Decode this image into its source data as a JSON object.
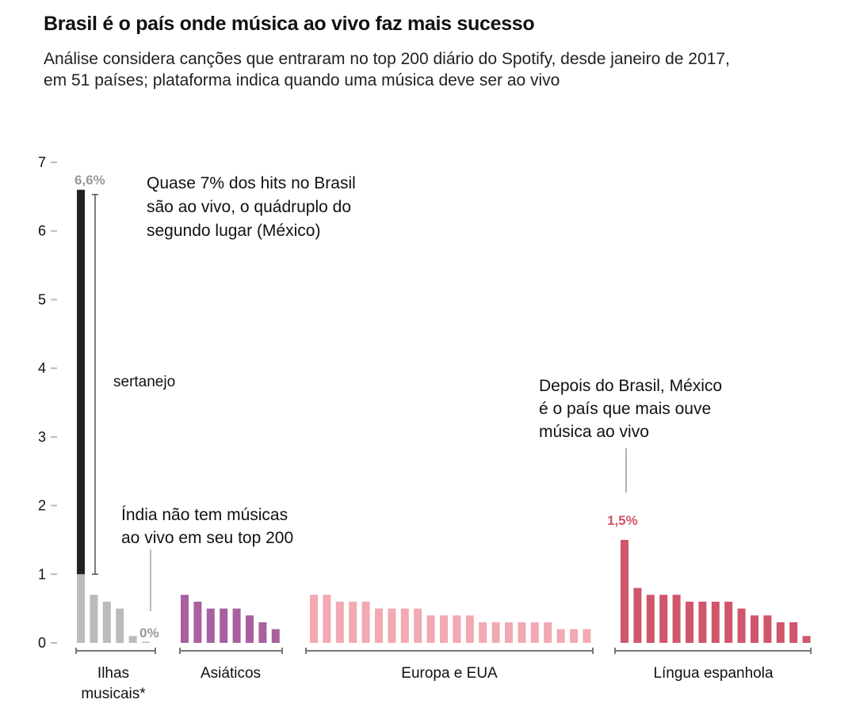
{
  "title": "Brasil é o país onde música ao vivo faz mais sucesso",
  "subtitle": "Análise considera canções que entraram no top 200 diário do Spotify, desde janeiro de 2017, em 51 países; plataforma indica quando uma música deve ser ao vivo",
  "chart_data": {
    "type": "bar",
    "ylim": [
      0,
      7
    ],
    "yticks": [
      "0",
      "1",
      "2",
      "3",
      "4",
      "5",
      "6",
      "7"
    ],
    "groups": [
      {
        "label_lines": [
          "Ilhas",
          "musicais*"
        ],
        "color": "#bbbbbb",
        "values": [
          6.6,
          0.7,
          0.6,
          0.5,
          0.1,
          0
        ]
      },
      {
        "label_lines": [
          "Asiáticos"
        ],
        "color": "#a8609f",
        "values": [
          0.7,
          0.6,
          0.5,
          0.5,
          0.5,
          0.4,
          0.3,
          0.2
        ]
      },
      {
        "label_lines": [
          "Europa e EUA"
        ],
        "color": "#f2a9b4",
        "values": [
          0.7,
          0.7,
          0.6,
          0.6,
          0.6,
          0.5,
          0.5,
          0.5,
          0.5,
          0.4,
          0.4,
          0.4,
          0.4,
          0.3,
          0.3,
          0.3,
          0.3,
          0.3,
          0.3,
          0.2,
          0.2,
          0.2
        ]
      },
      {
        "label_lines": [
          "Língua espanhola"
        ],
        "color": "#d0566b",
        "values": [
          1.5,
          0.8,
          0.7,
          0.7,
          0.7,
          0.6,
          0.6,
          0.6,
          0.6,
          0.5,
          0.4,
          0.4,
          0.3,
          0.3,
          0.1
        ]
      }
    ],
    "highlight": {
      "sertanejo_share": 5.6,
      "sertanejo_color": "#222222",
      "label": "sertanejo"
    },
    "value_labels": {
      "brasil": "6,6%",
      "india": "0%",
      "mexico": "1,5%"
    },
    "annotations": {
      "brasil": [
        "Quase 7% dos hits no Brasil",
        "são ao vivo, o quádruplo do",
        "segundo lugar (México)"
      ],
      "india": [
        "Índia não tem músicas",
        "ao vivo em seu top 200"
      ],
      "mexico": [
        "Depois do Brasil, México",
        "é o país que mais ouve",
        "música ao vivo"
      ]
    }
  }
}
